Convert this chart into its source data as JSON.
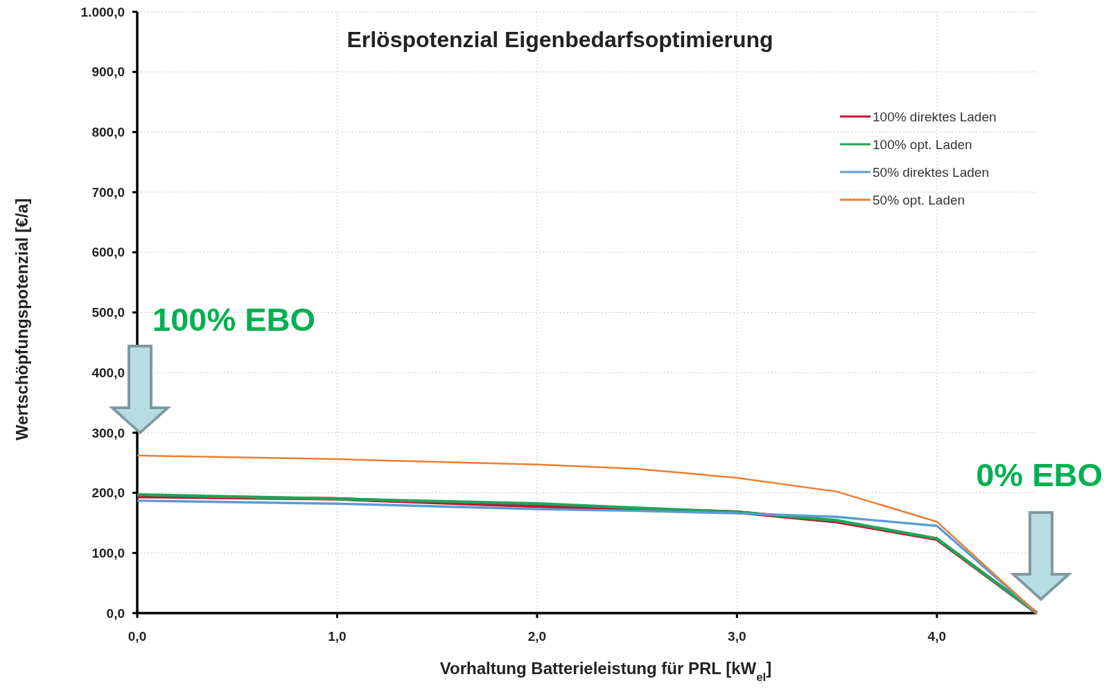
{
  "chart_data": {
    "type": "line",
    "title": "Erlöspotenzial Eigenbedarfsoptimierung",
    "xlabel": "Vorhaltung Batterieleistung für PRL [kW$_{el}$]",
    "ylabel": "Wertschöpfungspotenzial [€/a]",
    "x": [
      0,
      1,
      2,
      2.5,
      3,
      3.5,
      4,
      4.5
    ],
    "series": [
      {
        "name": "100% direktes Laden",
        "color": "#c0152f",
        "values": [
          194,
          190,
          178,
          173,
          168,
          152,
          123,
          0
        ]
      },
      {
        "name": "100% opt. Laden",
        "color": "#1fa55a",
        "values": [
          197,
          190,
          182,
          175,
          168,
          154,
          124,
          0
        ]
      },
      {
        "name": "50% direktes Laden",
        "color": "#5b9bd5",
        "values": [
          187,
          182,
          173,
          170,
          166,
          160,
          145,
          0
        ]
      },
      {
        "name": "50% opt. Laden",
        "color": "#ed7d31",
        "values": [
          262,
          256,
          247,
          240,
          225,
          202,
          152,
          0
        ]
      }
    ],
    "xlim": [
      0,
      4.5
    ],
    "xticks": [
      {
        "value": 0,
        "label": "0,0"
      },
      {
        "value": 1,
        "label": "1,0"
      },
      {
        "value": 2,
        "label": "2,0"
      },
      {
        "value": 3,
        "label": "3,0"
      },
      {
        "value": 4,
        "label": "4,0"
      }
    ],
    "ylim": [
      0,
      1000
    ],
    "yticks": [
      {
        "value": 0,
        "label": "0,0"
      },
      {
        "value": 100,
        "label": "100,0"
      },
      {
        "value": 200,
        "label": "200,0"
      },
      {
        "value": 300,
        "label": "300,0"
      },
      {
        "value": 400,
        "label": "400,0"
      },
      {
        "value": 500,
        "label": "500,0"
      },
      {
        "value": 600,
        "label": "600,0"
      },
      {
        "value": 700,
        "label": "700,0"
      },
      {
        "value": 800,
        "label": "800,0"
      },
      {
        "value": 900,
        "label": "900,0"
      },
      {
        "value": 1000,
        "label": "1.000,0"
      }
    ],
    "grid": true,
    "legend": "top right",
    "marker": "none",
    "line_style": "solid",
    "annotations": [
      "100% EBO",
      "0% EBO"
    ]
  }
}
